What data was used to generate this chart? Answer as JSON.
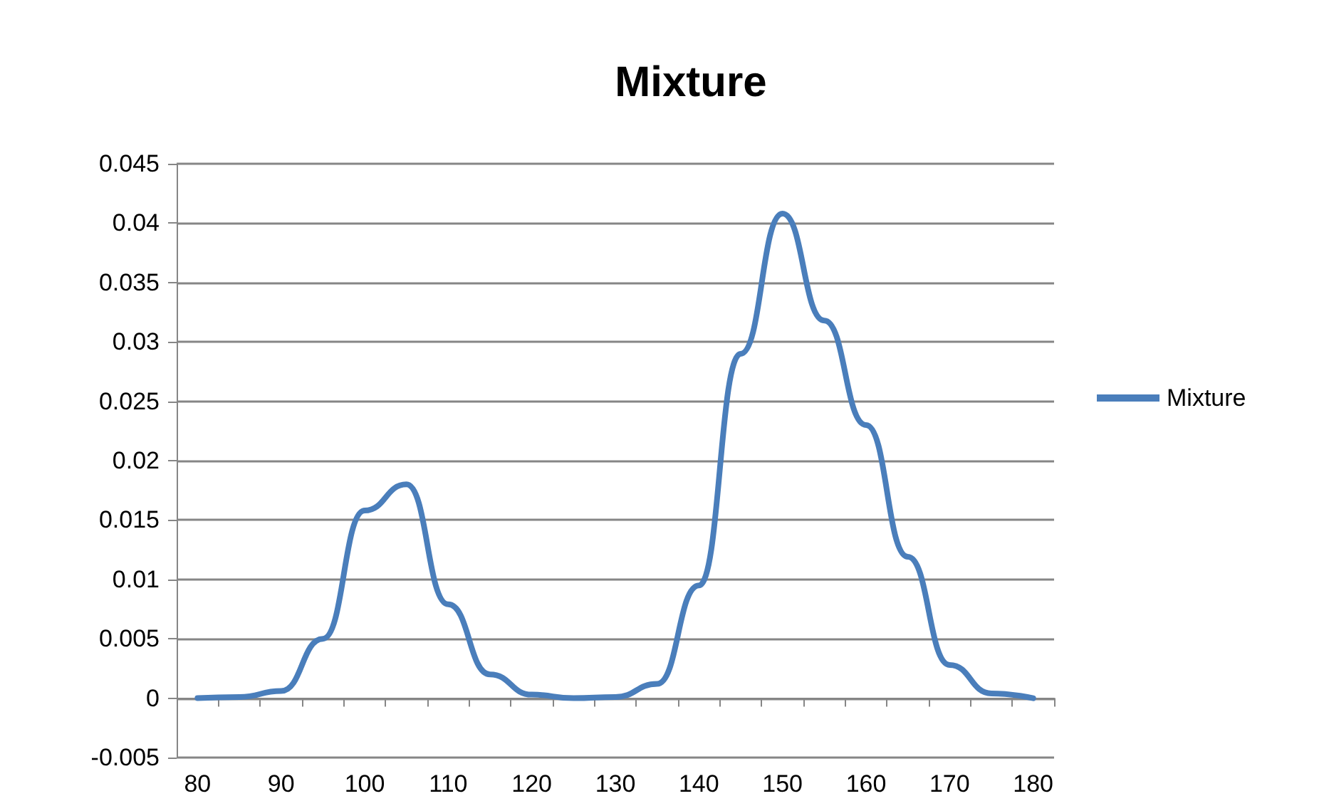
{
  "chart_data": {
    "type": "line",
    "title": "Mixture",
    "categories": [
      "80",
      null,
      "90",
      null,
      "100",
      null,
      "110",
      null,
      "120",
      null,
      "130",
      null,
      "140",
      null,
      "150",
      null,
      "160",
      null,
      "170",
      null,
      "180"
    ],
    "series": [
      {
        "name": "Mixture",
        "color": "#4a7ebb",
        "values": [
          0,
          0.0001,
          0.0006,
          0.005,
          0.0158,
          0.018,
          0.0079,
          0.002,
          0.0003,
          0,
          0.0001,
          0.0012,
          0.0095,
          0.029,
          0.0408,
          0.0318,
          0.023,
          0.0119,
          0.0028,
          0.0004,
          0
        ]
      }
    ],
    "ylim": [
      -0.005,
      0.045
    ],
    "yticks": [
      -0.005,
      0,
      0.005,
      0.01,
      0.015,
      0.02,
      0.025,
      0.03,
      0.035,
      0.04,
      0.045
    ],
    "grid": "y",
    "legend": "right",
    "marker": "none",
    "line_style": "solid"
  }
}
